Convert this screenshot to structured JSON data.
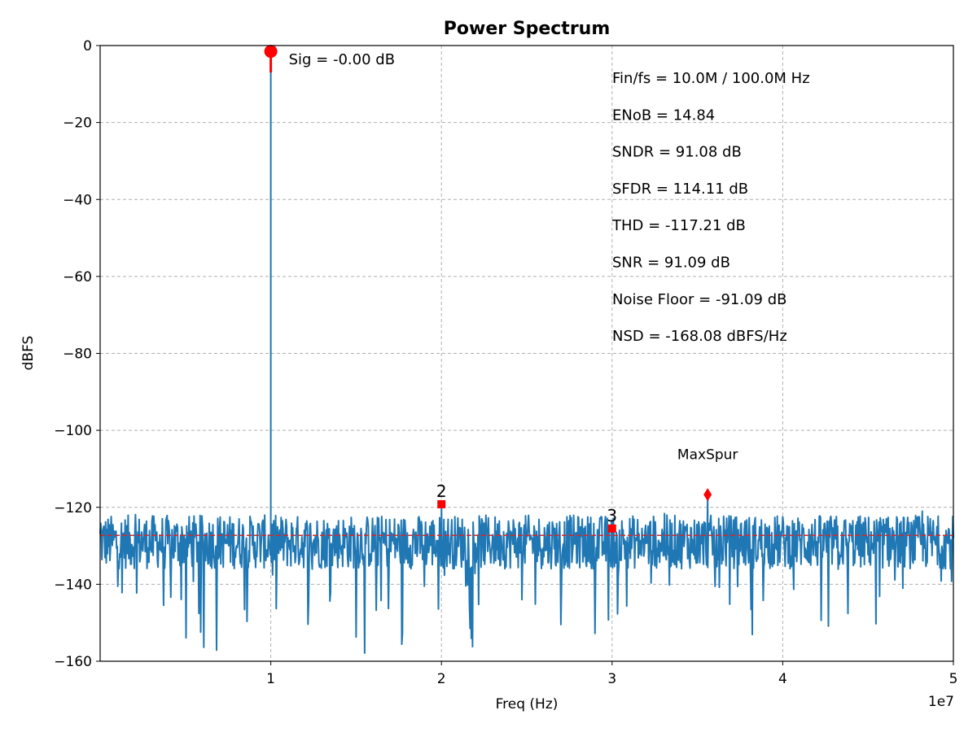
{
  "chart_data": {
    "type": "line",
    "title": "Power Spectrum",
    "xlabel": "Freq (Hz)",
    "ylabel": "dBFS",
    "x_offset_label": "1e7",
    "xlim": [
      0,
      50000000
    ],
    "ylim": [
      -160,
      0
    ],
    "grid": true,
    "x_ticks": [
      {
        "value": 10000000,
        "label": "1"
      },
      {
        "value": 20000000,
        "label": "2"
      },
      {
        "value": 30000000,
        "label": "3"
      },
      {
        "value": 40000000,
        "label": "4"
      },
      {
        "value": 50000000,
        "label": "5"
      }
    ],
    "y_ticks": [
      {
        "value": 0,
        "label": "0"
      },
      {
        "value": -20,
        "label": "−20"
      },
      {
        "value": -40,
        "label": "−40"
      },
      {
        "value": -60,
        "label": "−60"
      },
      {
        "value": -80,
        "label": "−80"
      },
      {
        "value": -100,
        "label": "−100"
      },
      {
        "value": -120,
        "label": "−120"
      },
      {
        "value": -140,
        "label": "−140"
      },
      {
        "value": -160,
        "label": "−160"
      }
    ],
    "series": [
      {
        "kind": "spectrum",
        "color": "#1f77b4",
        "noise_floor_mean": -129,
        "noise_min": -160,
        "noise_max": -121,
        "signal_peak": {
          "x": 10000000,
          "y": -1.5
        }
      }
    ],
    "noise_floor_line": {
      "y": -127.3,
      "color": "#d62728"
    },
    "signal_marker": {
      "x": 10000000,
      "y": -1.5,
      "color": "#ff0000",
      "label": "Sig = -0.00 dB"
    },
    "harmonics": [
      {
        "label": "2",
        "x": 20000000,
        "y": -119.2
      },
      {
        "label": "3",
        "x": 30000000,
        "y": -125.5
      }
    ],
    "max_spur": {
      "label": "MaxSpur",
      "x": 35600000,
      "y": -116.7
    },
    "stats": [
      "Fin/fs = 10.0M / 100.0M Hz",
      "ENoB = 14.84",
      "SNDR = 91.08 dB",
      "SFDR = 114.11 dB",
      "THD = -117.21 dB",
      "SNR = 91.09 dB",
      "Noise Floor = -91.09 dB",
      "NSD = -168.08 dBFS/Hz"
    ]
  }
}
